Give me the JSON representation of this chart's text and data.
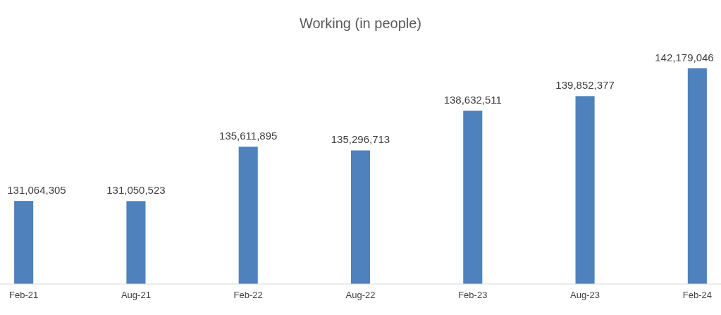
{
  "chart_data": {
    "type": "bar",
    "title": "Working (in people)",
    "categories": [
      "Feb-21",
      "Aug-21",
      "Feb-22",
      "Aug-22",
      "Feb-23",
      "Aug-23",
      "Feb-24"
    ],
    "values": [
      131064305,
      131050523,
      135611895,
      135296713,
      138632511,
      139852377,
      142179046
    ],
    "value_labels": [
      "131,064,305",
      "131,050,523",
      "135,611,895",
      "135,296,713",
      "138,632,511",
      "139,852,377",
      "142,179,046"
    ],
    "color": "#4f81bd",
    "ylim": [
      124100000,
      142179046
    ]
  }
}
